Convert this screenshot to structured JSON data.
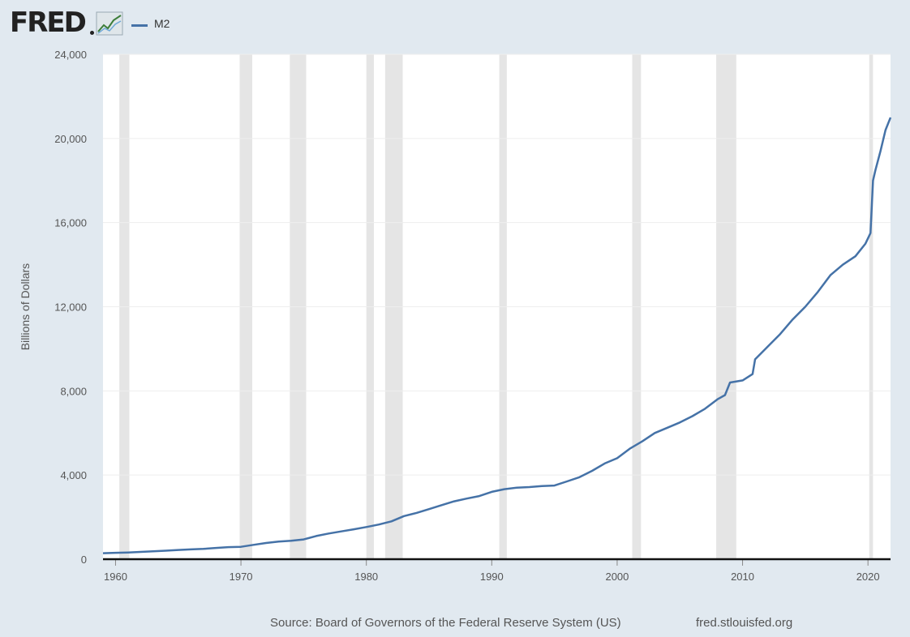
{
  "header": {
    "logo_text": "FRED",
    "logo_icon": "trend-chart-icon"
  },
  "colors": {
    "line": "#4572a7",
    "recession": "#e5e5e5",
    "plot_bg": "#ffffff",
    "page_bg": "#e1e9f0",
    "grid": "#eeeeee"
  },
  "chart_data": {
    "type": "line",
    "title": "",
    "xlabel": "",
    "ylabel": "Billions of Dollars",
    "xlim": [
      1959,
      2021.8
    ],
    "ylim": [
      0,
      24000
    ],
    "grid": true,
    "legend_position": "top-left",
    "y_ticks": [
      "0",
      "4,000",
      "8,000",
      "12,000",
      "16,000",
      "20,000",
      "24,000"
    ],
    "y_tick_values": [
      0,
      4000,
      8000,
      12000,
      16000,
      20000,
      24000
    ],
    "x_ticks": [
      "1960",
      "1970",
      "1980",
      "1990",
      "2000",
      "2010",
      "2020"
    ],
    "x_tick_values": [
      1960,
      1970,
      1980,
      1990,
      2000,
      2010,
      2020
    ],
    "recessions": [
      [
        1960.3,
        1961.1
      ],
      [
        1969.9,
        1970.9
      ],
      [
        1973.9,
        1975.2
      ],
      [
        1980.0,
        1980.6
      ],
      [
        1981.5,
        1982.9
      ],
      [
        1990.6,
        1991.2
      ],
      [
        2001.2,
        2001.9
      ],
      [
        2007.9,
        2009.5
      ],
      [
        2020.1,
        2020.4
      ]
    ],
    "series": [
      {
        "name": "M2",
        "x": [
          1959,
          1960,
          1961,
          1962,
          1963,
          1964,
          1965,
          1966,
          1967,
          1968,
          1969,
          1970,
          1971,
          1972,
          1973,
          1974,
          1975,
          1976,
          1977,
          1978,
          1979,
          1980,
          1981,
          1982,
          1983,
          1984,
          1985,
          1986,
          1987,
          1988,
          1989,
          1990,
          1991,
          1992,
          1993,
          1994,
          1995,
          1996,
          1997,
          1998,
          1999,
          2000,
          2001,
          2002,
          2003,
          2004,
          2005,
          2006,
          2007,
          2008,
          2008.6,
          2009,
          2010,
          2010.8,
          2011,
          2012,
          2013,
          2014,
          2015,
          2016,
          2017,
          2018,
          2019,
          2019.8,
          2020.2,
          2020.4,
          2020.6,
          2021,
          2021.4,
          2021.8
        ],
        "values": [
          286,
          304,
          320,
          345,
          375,
          405,
          440,
          465,
          490,
          535,
          575,
          590,
          680,
          770,
          840,
          880,
          940,
          1100,
          1220,
          1320,
          1420,
          1530,
          1650,
          1800,
          2050,
          2200,
          2380,
          2570,
          2750,
          2880,
          3000,
          3200,
          3330,
          3400,
          3430,
          3480,
          3500,
          3700,
          3900,
          4200,
          4550,
          4800,
          5250,
          5600,
          6000,
          6250,
          6500,
          6800,
          7150,
          7600,
          7800,
          8400,
          8500,
          8800,
          9500,
          10100,
          10700,
          11400,
          12000,
          12700,
          13500,
          14000,
          14400,
          15000,
          15500,
          18000,
          18500,
          19400,
          20400,
          21000
        ]
      }
    ]
  },
  "footer": {
    "source": "Source: Board of Governors of the Federal Reserve System (US)",
    "site": "fred.stlouisfed.org"
  }
}
